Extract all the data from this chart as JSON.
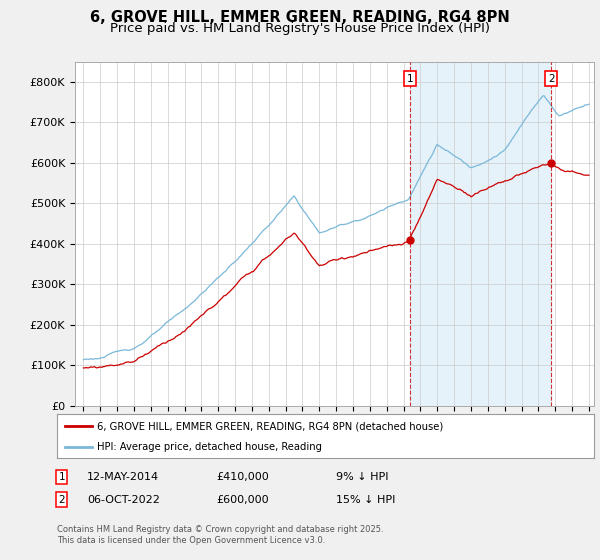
{
  "title": "6, GROVE HILL, EMMER GREEN, READING, RG4 8PN",
  "subtitle": "Price paid vs. HM Land Registry's House Price Index (HPI)",
  "ylim": [
    0,
    850000
  ],
  "yticks": [
    0,
    100000,
    200000,
    300000,
    400000,
    500000,
    600000,
    700000,
    800000
  ],
  "ytick_labels": [
    "£0",
    "£100K",
    "£200K",
    "£300K",
    "£400K",
    "£500K",
    "£600K",
    "£700K",
    "£800K"
  ],
  "hpi_color": "#7ab8d9",
  "hpi_fill_color": "#d6eaf8",
  "price_color": "#cc0000",
  "marker1_x": 2014.37,
  "marker1_y": 410000,
  "marker2_x": 2022.76,
  "marker2_y": 600000,
  "legend1_label": "6, GROVE HILL, EMMER GREEN, READING, RG4 8PN (detached house)",
  "legend2_label": "HPI: Average price, detached house, Reading",
  "copyright": "Contains HM Land Registry data © Crown copyright and database right 2025.\nThis data is licensed under the Open Government Licence v3.0.",
  "title_fontsize": 10.5,
  "subtitle_fontsize": 9.5,
  "bg_color": "#f0f0f0",
  "plot_bg_color": "#ffffff",
  "grid_color": "#cccccc",
  "xmin": 1995,
  "xmax": 2025
}
